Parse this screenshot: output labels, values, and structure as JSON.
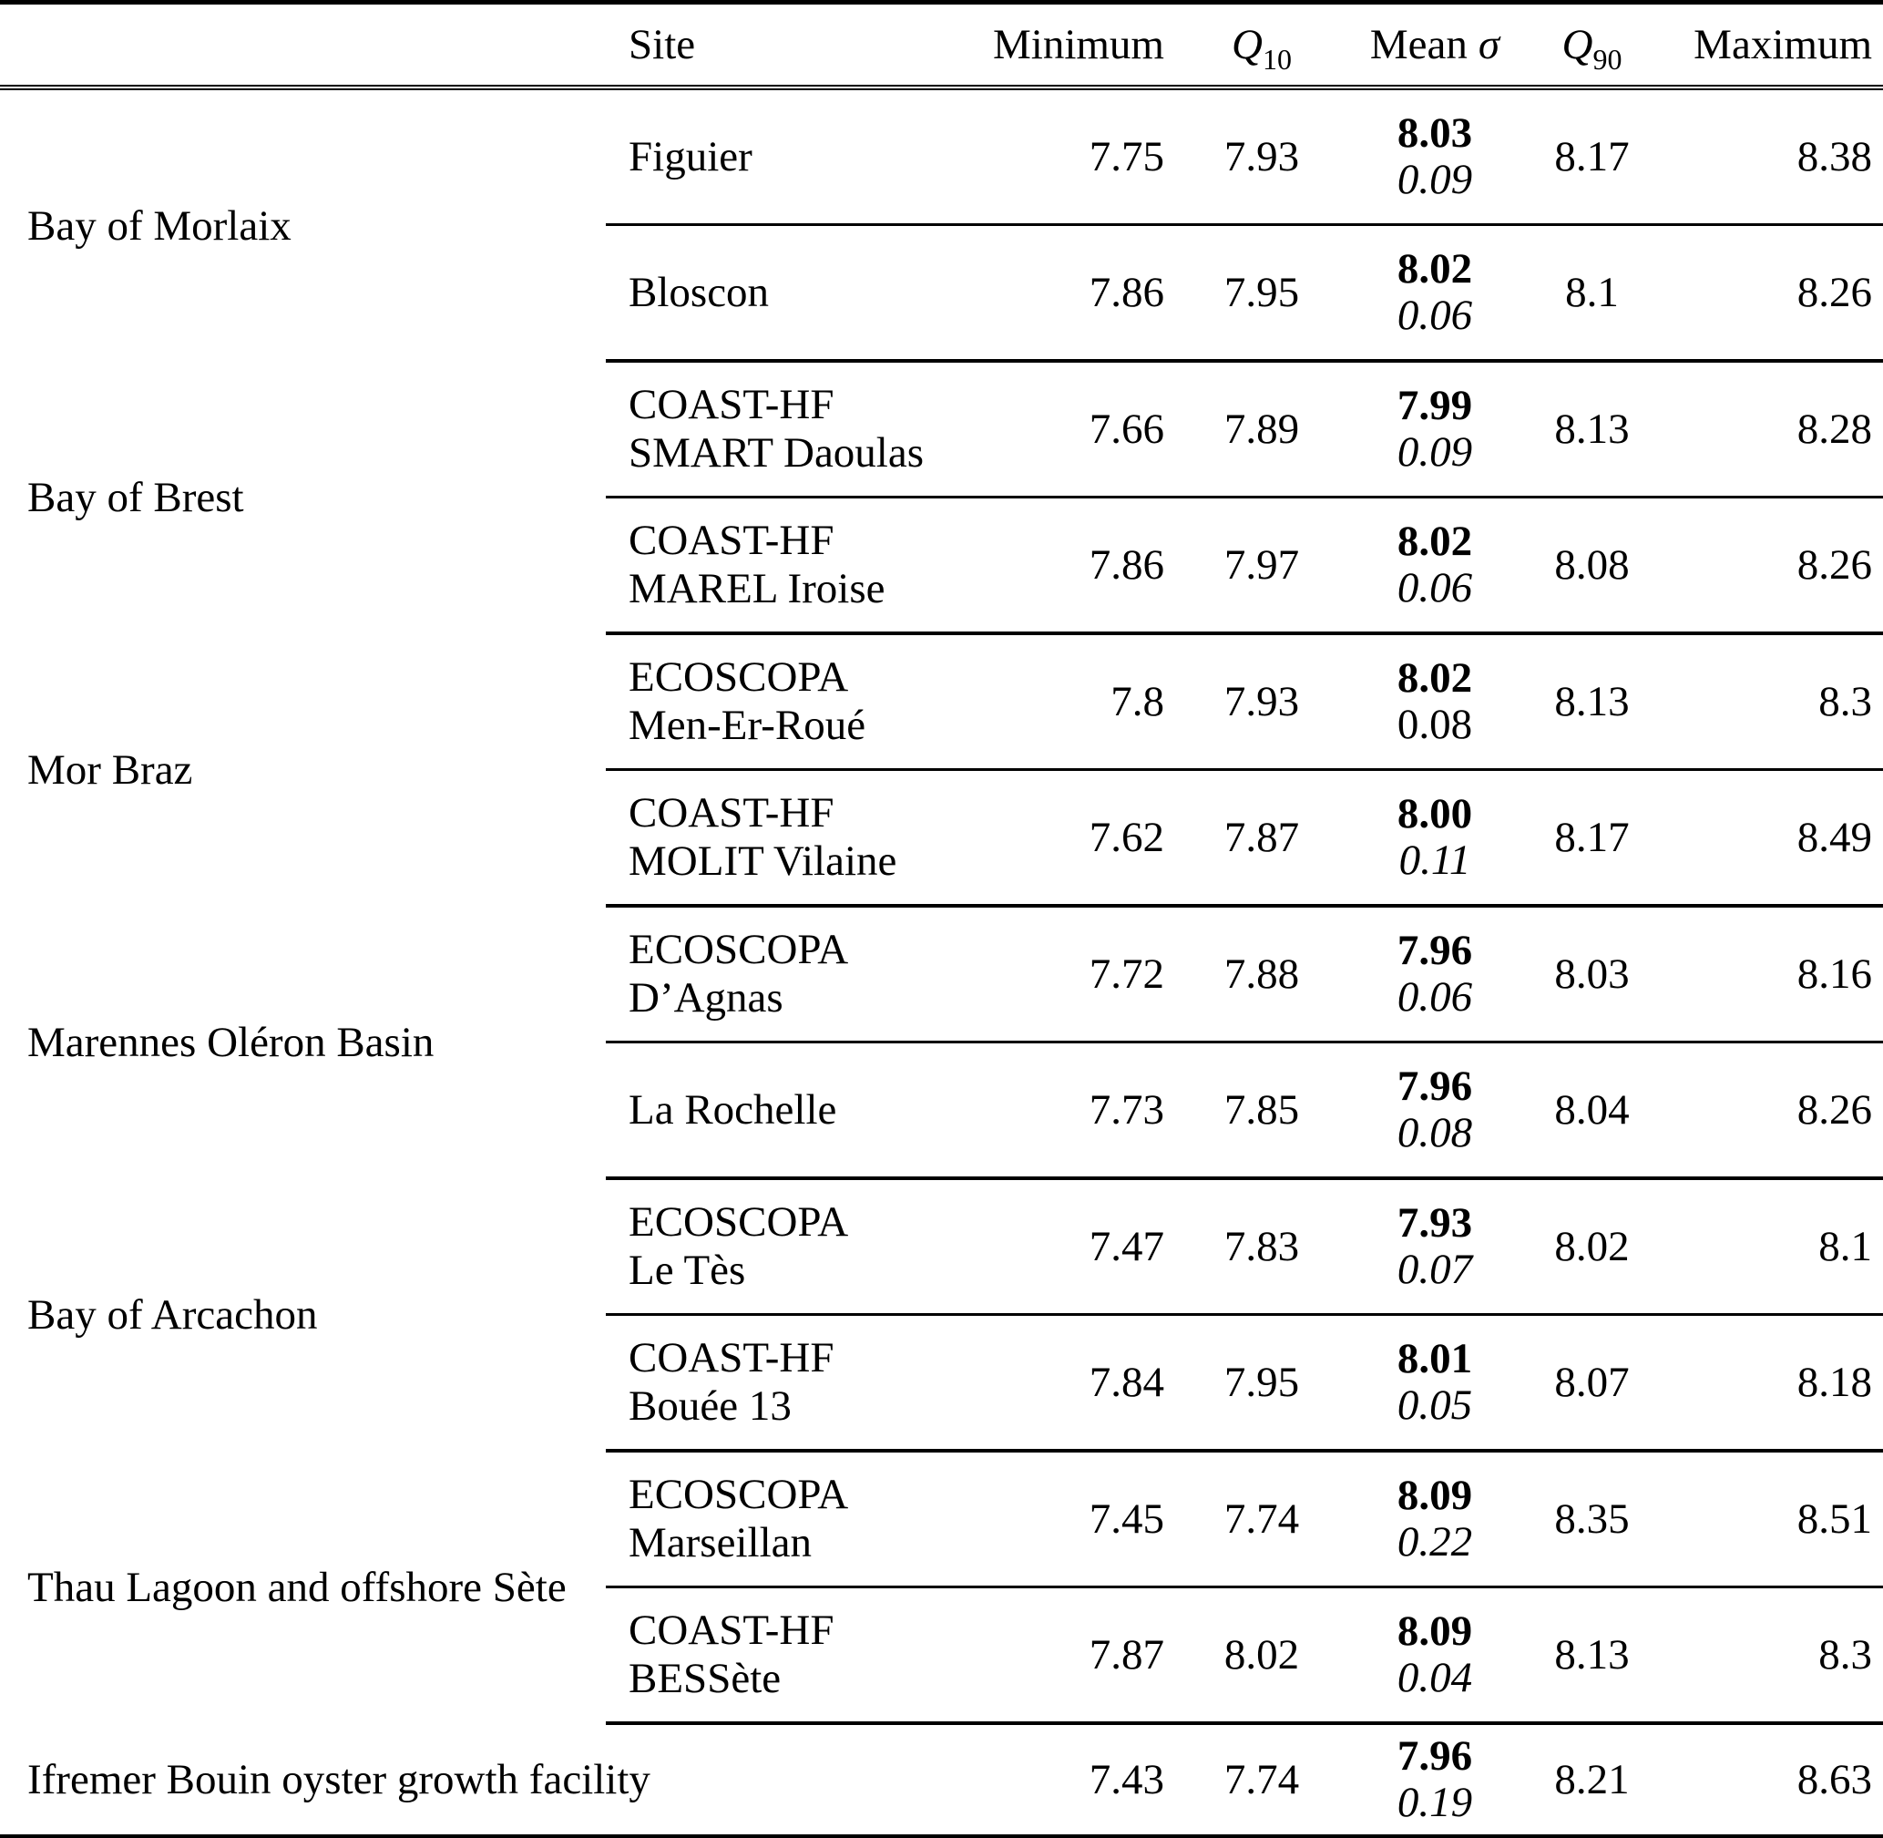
{
  "table": {
    "headers": {
      "region": "",
      "site": "Site",
      "min": "Minimum",
      "q10_base": "Q",
      "q10_sub": "10",
      "mean": "Mean",
      "sigma": "σ",
      "q90_base": "Q",
      "q90_sub": "90",
      "max": "Maximum"
    },
    "groups": [
      {
        "region": "Bay of Morlaix",
        "sites": [
          {
            "name": "Figuier",
            "min": "7.75",
            "q10": "7.93",
            "mean": "8.03",
            "sigma": "0.09",
            "q90": "8.17",
            "max": "8.38"
          },
          {
            "name": "Bloscon",
            "min": "7.86",
            "q10": "7.95",
            "mean": "8.02",
            "sigma": "0.06",
            "q90": "8.1",
            "max": "8.26"
          }
        ]
      },
      {
        "region": "Bay of Brest",
        "sites": [
          {
            "name": "COAST-HF\nSMART Daoulas",
            "min": "7.66",
            "q10": "7.89",
            "mean": "7.99",
            "sigma": "0.09",
            "q90": "8.13",
            "max": "8.28"
          },
          {
            "name": "COAST-HF\nMAREL Iroise",
            "min": "7.86",
            "q10": "7.97",
            "mean": "8.02",
            "sigma": "0.06",
            "q90": "8.08",
            "max": "8.26"
          }
        ]
      },
      {
        "region": "Mor Braz",
        "sites": [
          {
            "name": "ECOSCOPA\nMen-Er-Roué",
            "min": "7.8",
            "q10": "7.93",
            "mean": "8.02",
            "sigma": "0.08",
            "q90": "8.13",
            "max": "8.3"
          },
          {
            "name": "COAST-HF\nMOLIT Vilaine",
            "min": "7.62",
            "q10": "7.87",
            "mean": "8.00",
            "sigma": "0.11",
            "q90": "8.17",
            "max": "8.49"
          }
        ]
      },
      {
        "region": "Marennes Oléron Basin",
        "sites": [
          {
            "name": "ECOSCOPA\nD’Agnas",
            "min": "7.72",
            "q10": "7.88",
            "mean": "7.96",
            "sigma": "0.06",
            "q90": "8.03",
            "max": "8.16"
          },
          {
            "name": "La Rochelle",
            "min": "7.73",
            "q10": "7.85",
            "mean": "7.96",
            "sigma": "0.08",
            "q90": "8.04",
            "max": "8.26"
          }
        ]
      },
      {
        "region": "Bay of Arcachon",
        "sites": [
          {
            "name": "ECOSCOPA\nLe Tès",
            "min": "7.47",
            "q10": "7.83",
            "mean": "7.93",
            "sigma": "0.07",
            "q90": "8.02",
            "max": "8.1"
          },
          {
            "name": "COAST-HF\nBouée 13",
            "min": "7.84",
            "q10": "7.95",
            "mean": "8.01",
            "sigma": "0.05",
            "q90": "8.07",
            "max": "8.18"
          }
        ]
      },
      {
        "region": "Thau Lagoon and offshore Sète",
        "sites": [
          {
            "name": "ECOSCOPA\nMarseillan",
            "min": "7.45",
            "q10": "7.74",
            "mean": "8.09",
            "sigma": "0.22",
            "q90": "8.35",
            "max": "8.51"
          },
          {
            "name": "COAST-HF\nBESSète",
            "min": "7.87",
            "q10": "8.02",
            "mean": "8.09",
            "sigma": "0.04",
            "q90": "8.13",
            "max": "8.3"
          }
        ]
      }
    ],
    "footer_row": {
      "label": "Ifremer Bouin oyster growth facility",
      "min": "7.43",
      "q10": "7.74",
      "mean": "7.96",
      "sigma": "0.19",
      "q90": "8.21",
      "max": "8.63"
    }
  }
}
